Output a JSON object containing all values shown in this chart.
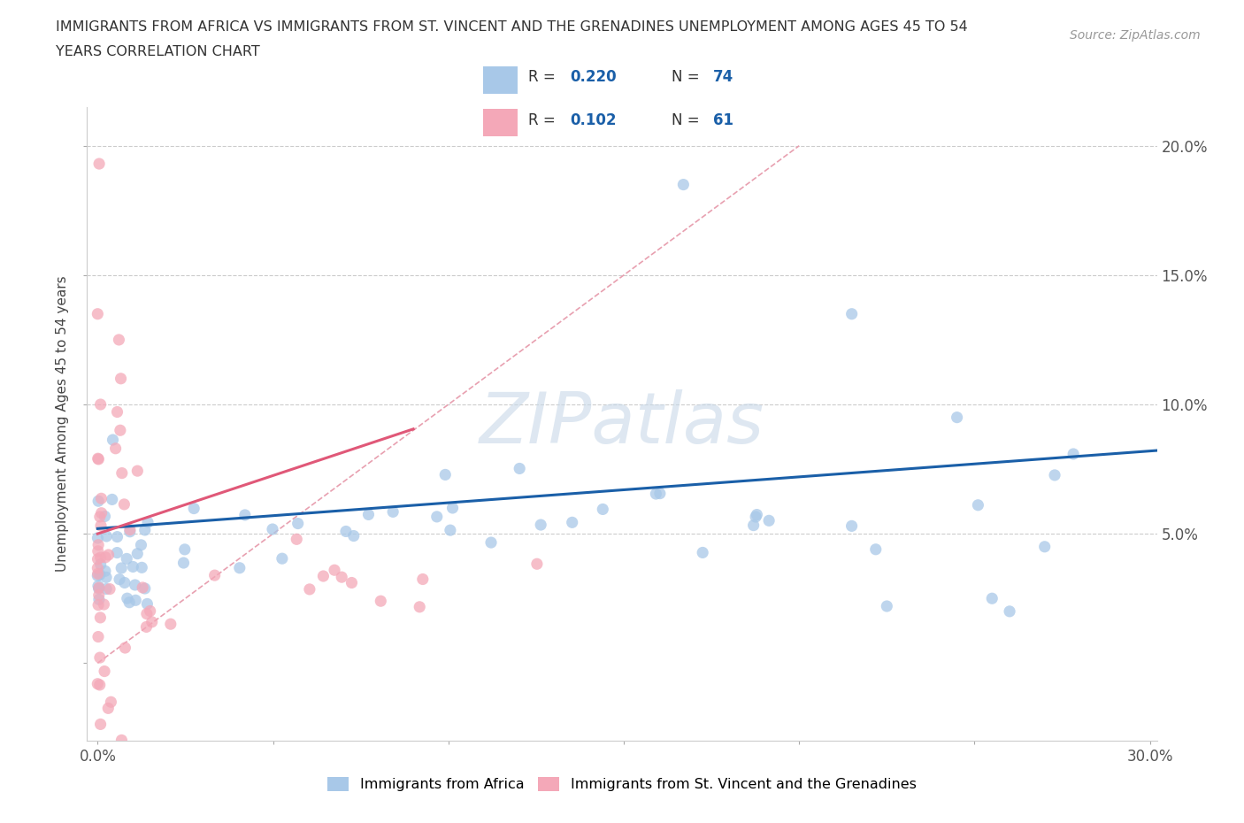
{
  "title_line1": "IMMIGRANTS FROM AFRICA VS IMMIGRANTS FROM ST. VINCENT AND THE GRENADINES UNEMPLOYMENT AMONG AGES 45 TO 54",
  "title_line2": "YEARS CORRELATION CHART",
  "source_text": "Source: ZipAtlas.com",
  "ylabel": "Unemployment Among Ages 45 to 54 years",
  "xlim": [
    -0.003,
    0.302
  ],
  "ylim": [
    -0.03,
    0.215
  ],
  "xtick_positions": [
    0.0,
    0.05,
    0.1,
    0.15,
    0.2,
    0.25,
    0.3
  ],
  "xtick_labels": [
    "0.0%",
    "",
    "",
    "",
    "",
    "",
    "30.0%"
  ],
  "ytick_positions": [
    0.0,
    0.05,
    0.1,
    0.15,
    0.2
  ],
  "ytick_labels": [
    "",
    "5.0%",
    "10.0%",
    "15.0%",
    "20.0%"
  ],
  "legend_r1": "0.220",
  "legend_n1": "74",
  "legend_r2": "0.102",
  "legend_n2": "61",
  "color_blue": "#a8c8e8",
  "color_pink": "#f4a8b8",
  "color_line_blue": "#1a5fa8",
  "color_line_pink": "#e05878",
  "color_dashed": "#e8a0b0",
  "watermark": "ZIPatlas",
  "watermark_color": "#c8d8e8"
}
